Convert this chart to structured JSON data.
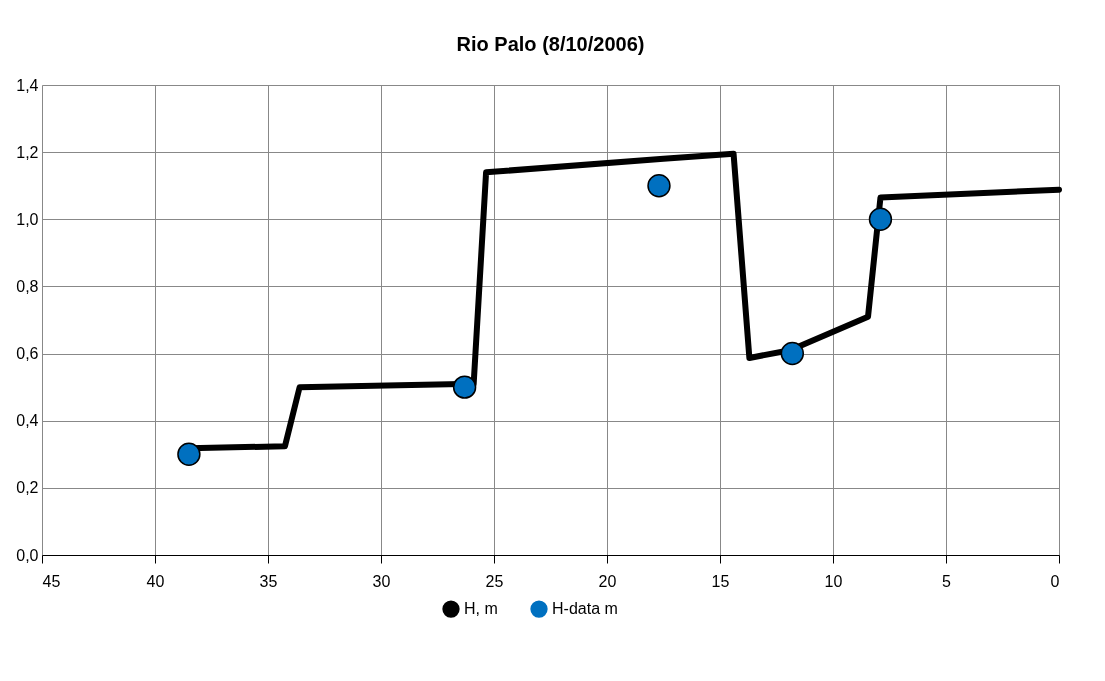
{
  "chart_data": {
    "type": "line",
    "title": "Rio Palo (8/10/2006)",
    "xlim": [
      45,
      0
    ],
    "xticks": [
      45,
      40,
      35,
      30,
      25,
      20,
      15,
      10,
      5,
      0
    ],
    "ylim": [
      0,
      1.4
    ],
    "yticks": [
      {
        "value": 0,
        "label": "0,0"
      },
      {
        "value": 0.2,
        "label": "0,2"
      },
      {
        "value": 0.4,
        "label": "0,4"
      },
      {
        "value": 0.6,
        "label": "0,6"
      },
      {
        "value": 0.8,
        "label": "0,8"
      },
      {
        "value": 1.0,
        "label": "1,0"
      },
      {
        "value": 1.2,
        "label": "1,2"
      },
      {
        "value": 1.4,
        "label": "1,4"
      }
    ],
    "grid": true,
    "legend": "bottom",
    "series": [
      {
        "name": "H, m",
        "type": "line",
        "color": "#000000",
        "marker": "none",
        "line_style": "solid",
        "x": [
          38.5,
          34.25,
          33.6,
          25.9,
          25.35,
          17.5,
          14.4,
          13.7,
          11.9,
          8.45,
          7.9,
          0
        ],
        "values": [
          0.318,
          0.324,
          0.5,
          0.51,
          1.14,
          1.18,
          1.195,
          0.587,
          0.61,
          0.71,
          1.065,
          1.088
        ]
      },
      {
        "name": "H-data m",
        "type": "scatter",
        "color": "#0070c0",
        "marker": "circle",
        "x": [
          38.5,
          26.3,
          17.7,
          11.8,
          7.9
        ],
        "values": [
          0.3,
          0.5,
          1.1,
          0.6,
          1.0
        ]
      }
    ]
  }
}
